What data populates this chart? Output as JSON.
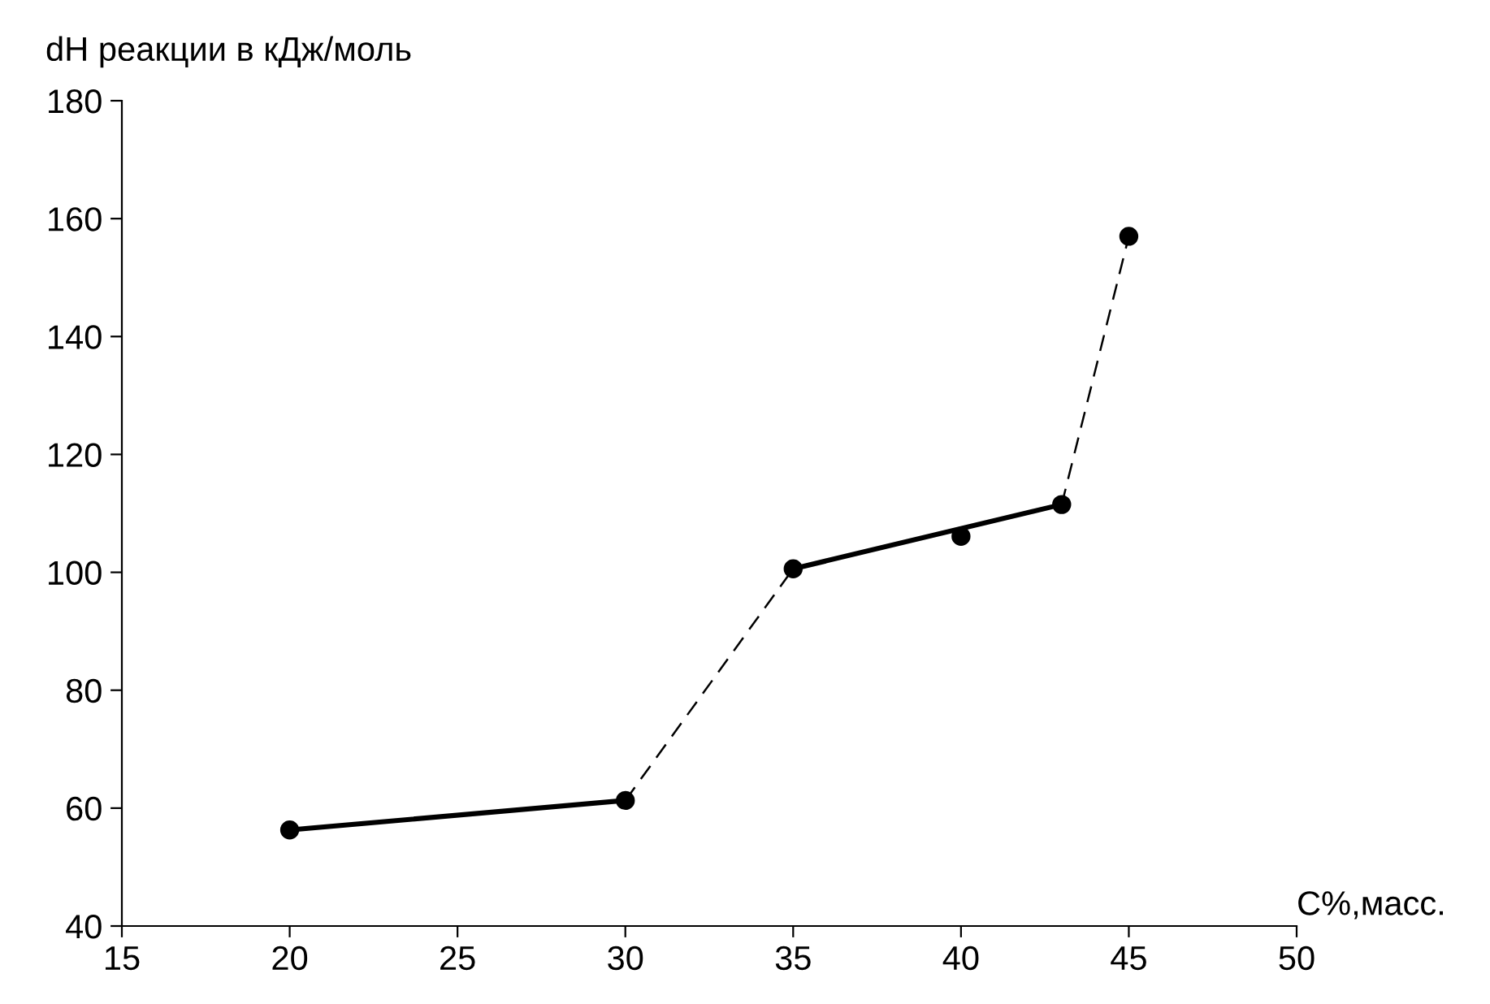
{
  "chart_data": {
    "type": "line",
    "xlabel": "С%,масс.",
    "ylabel": "dH реакции в кДж/моль",
    "xlim": [
      15,
      50
    ],
    "xticks": [
      15,
      20,
      25,
      30,
      35,
      40,
      45,
      50
    ],
    "ylim": [
      40,
      180
    ],
    "yticks": [
      40,
      60,
      80,
      100,
      120,
      140,
      160,
      180
    ],
    "series": [
      {
        "color": "#000000",
        "line_style": "solid",
        "x": [
          20,
          30
        ],
        "values": [
          56.3,
          61.3
        ]
      },
      {
        "color": "#000000",
        "line_style": "solid",
        "x": [
          35,
          43
        ],
        "values": [
          100.6,
          111.5
        ]
      },
      {
        "color": "#000000",
        "line_style": "dashed",
        "x": [
          30,
          35
        ],
        "values": [
          61.3,
          100.6
        ]
      },
      {
        "color": "#000000",
        "line_style": "dashed",
        "x": [
          43,
          45
        ],
        "values": [
          111.5,
          157
        ]
      },
      {
        "type": "scatter",
        "color": "#000000",
        "marker": "circle",
        "x": [
          20,
          30,
          35,
          40,
          43,
          45
        ],
        "values": [
          56.3,
          61.3,
          100.6,
          106.1,
          111.5,
          157
        ]
      }
    ]
  }
}
